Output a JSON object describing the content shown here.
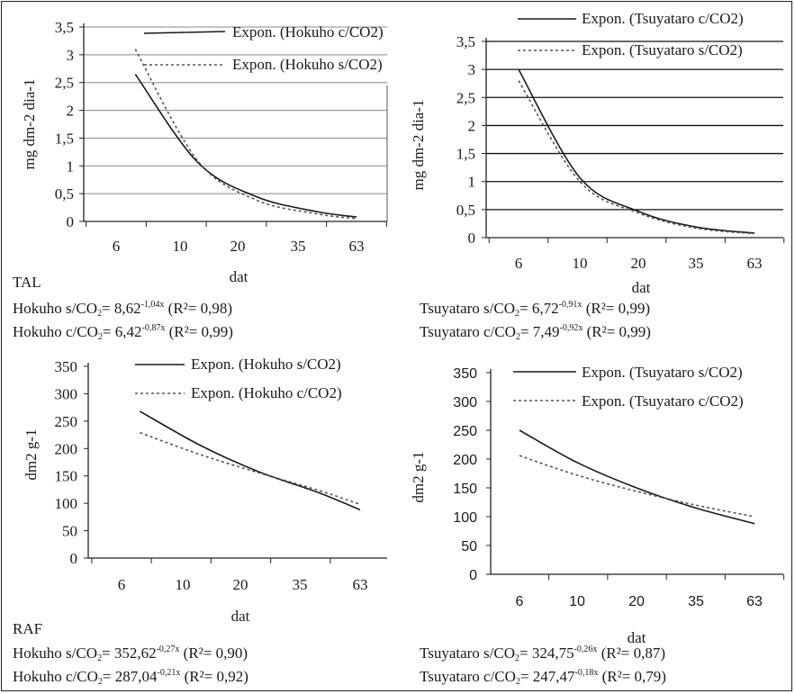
{
  "chart_data": [
    {
      "id": "tal-hokuho",
      "type": "line",
      "ylabel": "mg dm-2 dia-1",
      "xlabel": "dat",
      "categories": [
        "6",
        "10",
        "20",
        "35",
        "63"
      ],
      "ylim": [
        0,
        3.5
      ],
      "yticks": [
        "0",
        "0,5",
        "1",
        "1,5",
        "2",
        "2,5",
        "3",
        "3,5"
      ],
      "ytick_values": [
        0,
        0.5,
        1,
        1.5,
        2,
        2.5,
        3,
        3.5
      ],
      "grid": true,
      "legend_position": "top-right",
      "series": [
        {
          "name": "Expon. (Hokuho c/CO2)",
          "style": "solid",
          "x": [
            1.3,
            2.3,
            3.3,
            4.3,
            5.3
          ],
          "values": [
            2.65,
            1.07,
            0.45,
            0.18,
            0.08
          ]
        },
        {
          "name": "Expon. (Hokuho s/CO2)",
          "style": "dotted",
          "x": [
            1.3,
            2.3,
            3.3,
            4.3,
            5.3
          ],
          "values": [
            3.1,
            1.1,
            0.39,
            0.14,
            0.05
          ]
        }
      ]
    },
    {
      "id": "tal-tsuyataro",
      "type": "line",
      "ylabel": "mg dm-2 dia-1",
      "xlabel": "dat",
      "categories": [
        "6",
        "10",
        "20",
        "35",
        "63"
      ],
      "ylim": [
        0,
        3.5
      ],
      "yticks": [
        "0",
        "0,5",
        "1",
        "1,5",
        "2",
        "2,5",
        "3",
        "3,5"
      ],
      "ytick_values": [
        0,
        0.5,
        1,
        1.5,
        2,
        2.5,
        3,
        3.5
      ],
      "grid": true,
      "legend_position": "top-right",
      "series": [
        {
          "name": "Expon. (Tsuyataro c/CO2)",
          "style": "solid",
          "x": [
            1.0,
            2.0,
            3.0,
            4.0,
            5.0
          ],
          "values": [
            3.0,
            1.07,
            0.47,
            0.19,
            0.08
          ]
        },
        {
          "name": "Expon. (Tsuyataro s/CO2)",
          "style": "dotted",
          "x": [
            1.0,
            2.0,
            3.0,
            4.0,
            5.0
          ],
          "values": [
            2.8,
            1.0,
            0.44,
            0.17,
            0.07
          ]
        }
      ]
    },
    {
      "id": "raf-hokuho",
      "type": "line",
      "ylabel": "dm2 g-1",
      "xlabel": "dat",
      "categories": [
        "6",
        "10",
        "20",
        "35",
        "63"
      ],
      "ylim": [
        0,
        350
      ],
      "yticks": [
        "0",
        "50",
        "100",
        "150",
        "200",
        "250",
        "300",
        "350"
      ],
      "ytick_values": [
        0,
        50,
        100,
        150,
        200,
        250,
        300,
        350
      ],
      "grid": false,
      "legend_position": "top-right",
      "series": [
        {
          "name": "Expon. (Hokuho s/CO2)",
          "style": "solid",
          "x": [
            1.3,
            2.3,
            3.3,
            4.3,
            5.3
          ],
          "values": [
            268,
            206,
            158,
            120,
            88
          ]
        },
        {
          "name": "Expon. (Hokuho c/CO2)",
          "style": "dotted",
          "x": [
            1.3,
            2.3,
            3.3,
            4.3,
            5.3
          ],
          "values": [
            229,
            189,
            156,
            124,
            98
          ]
        }
      ]
    },
    {
      "id": "raf-tsuyataro",
      "type": "line",
      "ylabel": "dm2 g-1",
      "xlabel": "dat",
      "categories": [
        "6",
        "10",
        "20",
        "35",
        "63"
      ],
      "ylim": [
        0,
        350
      ],
      "yticks": [
        "0",
        "50",
        "100",
        "150",
        "200",
        "250",
        "300",
        "350"
      ],
      "ytick_values": [
        0,
        50,
        100,
        150,
        200,
        250,
        300,
        350
      ],
      "grid": false,
      "legend_position": "top-right",
      "series": [
        {
          "name": "Expon. (Tsuyataro s/CO2)",
          "style": "solid",
          "x": [
            1.0,
            2.0,
            3.0,
            4.0,
            5.0
          ],
          "values": [
            250,
            194,
            150,
            115,
            88
          ]
        },
        {
          "name": "Expon. (Tsuyataro c/CO2)",
          "style": "dotted",
          "x": [
            1.0,
            2.0,
            3.0,
            4.0,
            5.0
          ],
          "values": [
            206,
            172,
            144,
            120,
            100
          ]
        }
      ]
    }
  ],
  "captions": {
    "tal": "TAL",
    "raf": "RAF"
  },
  "equations": {
    "tal_hokuho_s": {
      "pre": "Hokuho s/CO",
      "sub": "2",
      "coef": "= 8,62",
      "exp": "-1,04x",
      "r2": "(R²= 0,98)"
    },
    "tal_hokuho_c": {
      "pre": "Hokuho c/CO",
      "sub": "2",
      "coef": "= 6,42",
      "exp": "-0,87x",
      "r2": "(R²= 0,99)"
    },
    "tal_tsuyataro_s": {
      "pre": "Tsuyataro s/CO",
      "sub": "2",
      "coef": "= 6,72",
      "exp": "-0,91x",
      "r2": "(R²= 0,99)"
    },
    "tal_tsuyataro_c": {
      "pre": "Tsuyataro c/CO",
      "sub": "2",
      "coef": "= 7,49",
      "exp": "-0,92x",
      "r2": "(R²= 0,99)"
    },
    "raf_hokuho_s": {
      "pre": "Hokuho s/CO",
      "sub": "2",
      "coef": "= 352,62",
      "exp": "-0,27x",
      "r2": "(R²= 0,90)"
    },
    "raf_hokuho_c": {
      "pre": "Hokuho c/CO",
      "sub": "2",
      "coef": "= 287,04",
      "exp": "-0,21x",
      "r2": "(R²= 0,92)"
    },
    "raf_tsuyataro_s": {
      "pre": "Tsuyataro s/CO",
      "sub": "2",
      "coef": "= 324,75",
      "exp": "-0,26x",
      "r2": "(R²= 0,87)"
    },
    "raf_tsuyataro_c": {
      "pre": "Tsuyataro c/CO",
      "sub": "2",
      "coef": "= 247,47",
      "exp": "-0,18x",
      "r2": "(R²= 0,79)"
    }
  }
}
